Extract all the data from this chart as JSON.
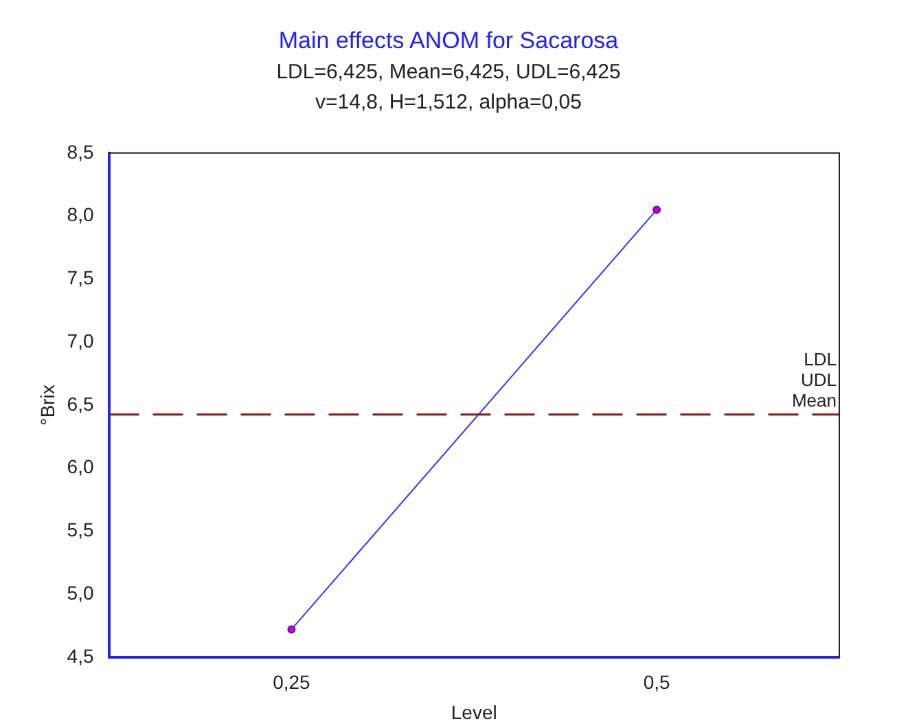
{
  "chart_data": {
    "type": "line",
    "title": "Main effects ANOM for Sacarosa",
    "subtitle": "LDL=6,425, Mean=6,425, UDL=6,425\nv=14,8, H=1,512, alpha=0,05",
    "xlabel": "Level",
    "ylabel": "°Brix",
    "x": [
      0.25,
      0.5
    ],
    "series": [
      {
        "color": "#3333ff",
        "values": [
          4.72,
          8.05
        ]
      }
    ],
    "xlim": [
      0.125,
      0.625
    ],
    "xticks": [
      {
        "value": 0.25,
        "label": "0,25"
      },
      {
        "value": 0.5,
        "label": "0,5"
      }
    ],
    "ylim": [
      4.5,
      8.5
    ],
    "yticks": [
      {
        "value": 4.5,
        "label": "4,5"
      },
      {
        "value": 5,
        "label": "5,0"
      },
      {
        "value": 5.5,
        "label": "5,5"
      },
      {
        "value": 6,
        "label": "6,0"
      },
      {
        "value": 6.5,
        "label": "6,5"
      },
      {
        "value": 7,
        "label": "7,0"
      },
      {
        "value": 7.5,
        "label": "7,5"
      },
      {
        "value": 8,
        "label": "8,0"
      },
      {
        "value": 8.5,
        "label": "8,5"
      }
    ],
    "ref_lines": [
      {
        "axis": "y",
        "value": 6.425,
        "label": "Mean",
        "color": "#8b1a1a",
        "line_style": "dashed"
      }
    ],
    "annotations": [
      {
        "text": "UDL",
        "y": 6.425
      },
      {
        "text": "LDL",
        "y": 6.425
      }
    ],
    "grid": false,
    "legend": false,
    "marker": "circle",
    "line_style": "solid"
  }
}
